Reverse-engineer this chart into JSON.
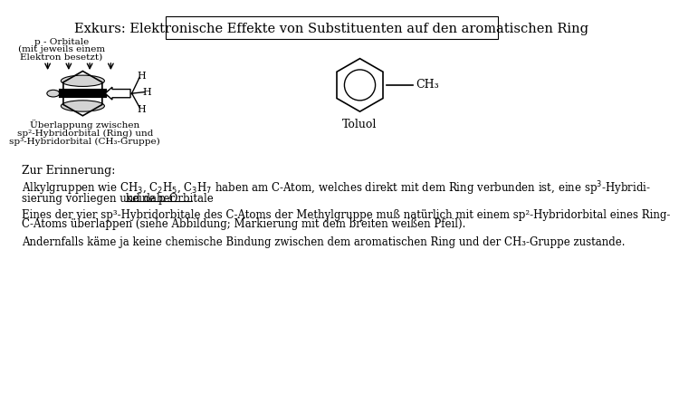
{
  "title": "Exkurs: Elektronische Effekte von Substituenten auf den aromatischen Ring",
  "title_box_color": "#ffffff",
  "title_border_color": "#000000",
  "background_color": "#ffffff",
  "text_color": "#000000",
  "font_size_title": 10.5,
  "font_size_body": 8.5,
  "top_left_label1": "p - Orbitale",
  "top_left_label2": "(mit jeweils einem",
  "top_left_label3": "Elektron besetzt)",
  "caption1_line1": "Überlappung zwischen",
  "caption1_line2": "sp²-Hybridorbital (Ring) und",
  "caption1_line3": "sp³-Hybridorbital (CH₃-Gruppe)",
  "toluol_label": "Toluol",
  "toluol_ch3": "CH₃",
  "section_header": "Zur Erinnerung:",
  "paragraph1_line1": "Alkylgruppen wie CH$_3$, C$_2$H$_5$, C$_3$H$_7$ haben am C-Atom, welches direkt mit dem Ring verbunden ist, eine sp$^3$-Hybridi-",
  "paragraph1_line2a": "sierung vorliegen und daher ",
  "paragraph1_underline": "keine p-Orbitale",
  "paragraph1_line2b": ".",
  "paragraph2_line1": "Eines der vier sp³-Hybridorbitale des C-Atoms der Methylgruppe muß natürlich mit einem sp²-Hybridorbital eines Ring-",
  "paragraph2_line2": "C-Atoms überlappen (siehe Abbildung; Markierung mit dem breiten weißen Pfeil).",
  "paragraph3": "Andernfalls käme ja keine chemische Bindung zwischen dem aromatischen Ring und der CH₃-Gruppe zustande."
}
